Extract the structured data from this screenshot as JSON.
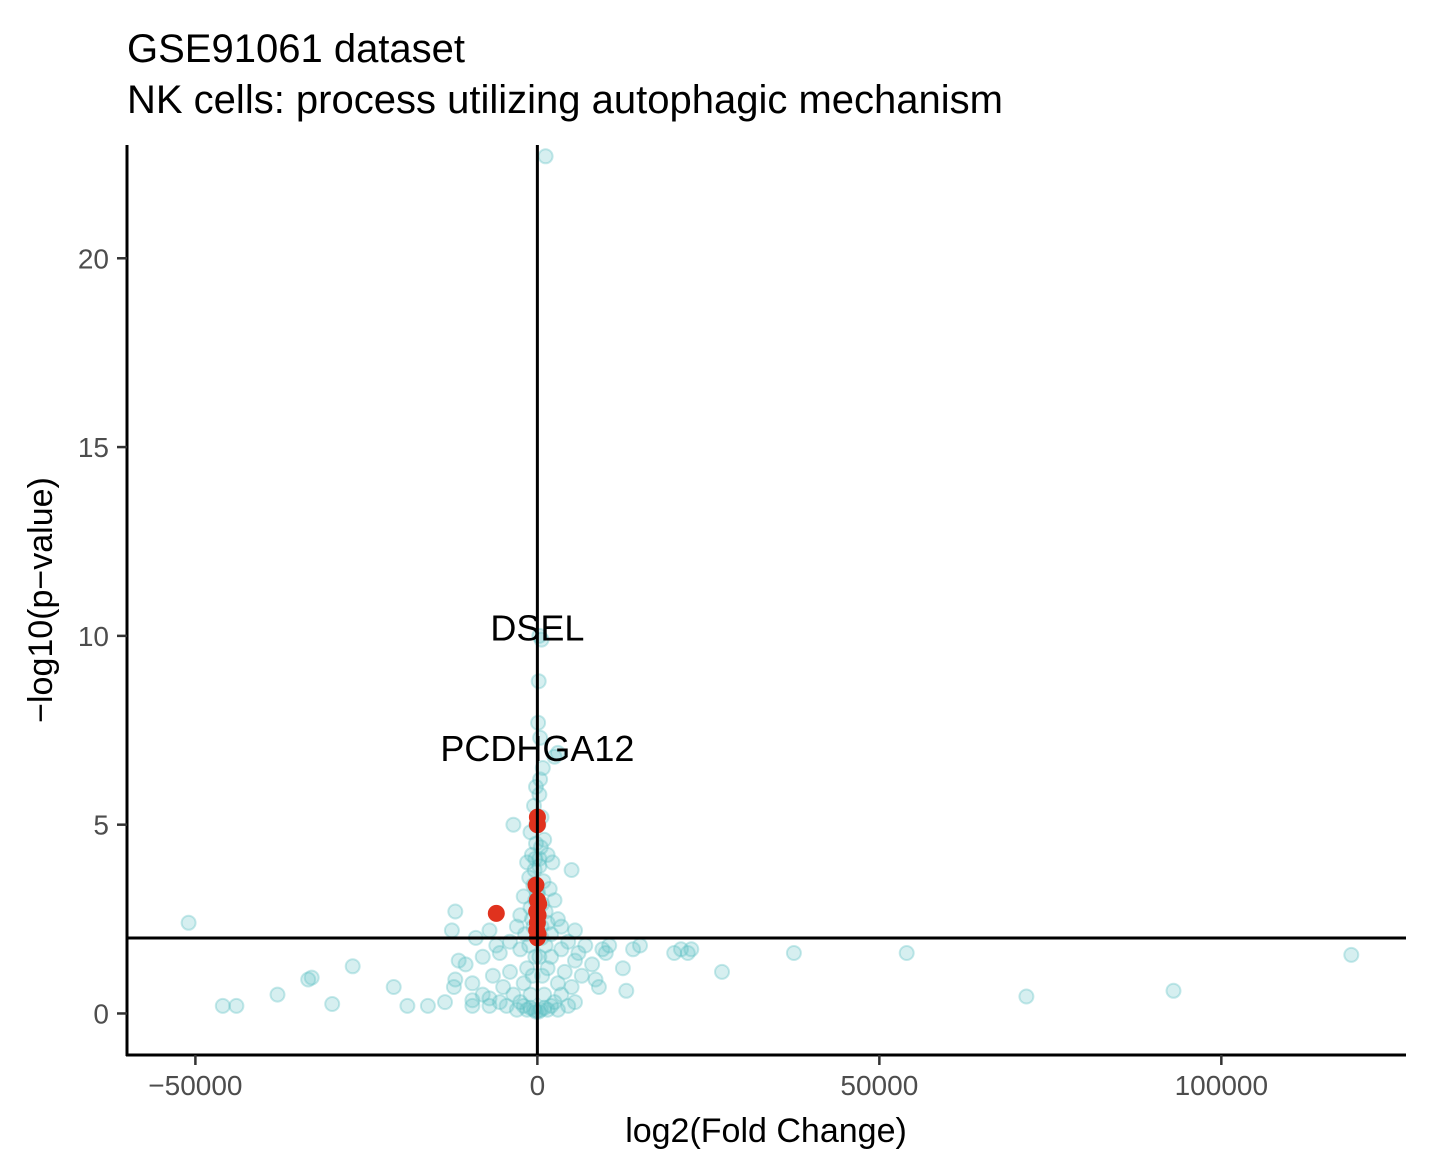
{
  "chart_data": {
    "type": "scatter",
    "title": "GSE91061 dataset",
    "subtitle": "NK cells: process utilizing autophagic mechanism",
    "xlabel": "log2(Fold Change)",
    "ylabel": "−log10(p−value)",
    "xlim": [
      -60000,
      127000
    ],
    "ylim": [
      -1.1,
      23.0
    ],
    "x_ticks": [
      -50000,
      0,
      50000,
      100000
    ],
    "x_tick_labels": [
      "−50000",
      "0",
      "50000",
      "100000"
    ],
    "y_ticks": [
      0,
      5,
      10,
      15,
      20
    ],
    "y_tick_labels": [
      "0",
      "5",
      "10",
      "15",
      "20"
    ],
    "reference_lines": {
      "vertical_x": 0,
      "horizontal_y": 2
    },
    "grid": false,
    "legend": "none",
    "colors": {
      "background_points": "#5bbfc4",
      "highlight_points": "#e0321e",
      "axis": "#000000"
    },
    "annotations": [
      {
        "text": "DSEL",
        "x": 0,
        "y": 10.2
      },
      {
        "text": "PCDHGA12",
        "x": 0,
        "y": 7.0
      }
    ],
    "series": [
      {
        "name": "",
        "role": "background",
        "points": [
          [
            1200,
            22.7
          ],
          [
            300,
            10.0
          ],
          [
            600,
            9.9
          ],
          [
            200,
            8.8
          ],
          [
            100,
            7.7
          ],
          [
            400,
            7.3
          ],
          [
            2500,
            6.8
          ],
          [
            3000,
            6.9
          ],
          [
            800,
            6.5
          ],
          [
            400,
            6.2
          ],
          [
            -200,
            6.0
          ],
          [
            300,
            5.8
          ],
          [
            -500,
            5.5
          ],
          [
            600,
            5.2
          ],
          [
            -3500,
            5.0
          ],
          [
            -1000,
            4.8
          ],
          [
            1000,
            4.6
          ],
          [
            -200,
            4.5
          ],
          [
            500,
            4.4
          ],
          [
            -800,
            4.2
          ],
          [
            1500,
            4.2
          ],
          [
            -1500,
            4.0
          ],
          [
            2200,
            4.0
          ],
          [
            300,
            3.9
          ],
          [
            -400,
            3.8
          ],
          [
            5000,
            3.8
          ],
          [
            -1200,
            3.6
          ],
          [
            900,
            3.5
          ],
          [
            -600,
            3.4
          ],
          [
            1800,
            3.3
          ],
          [
            -2000,
            3.1
          ],
          [
            2500,
            3.0
          ],
          [
            -300,
            3.0
          ],
          [
            700,
            2.9
          ],
          [
            -1000,
            2.8
          ],
          [
            1200,
            2.7
          ],
          [
            -12000,
            2.7
          ],
          [
            -2500,
            2.6
          ],
          [
            3000,
            2.5
          ],
          [
            -800,
            2.5
          ],
          [
            1500,
            2.4
          ],
          [
            -51000,
            2.4
          ],
          [
            3500,
            2.3
          ],
          [
            -3000,
            2.3
          ],
          [
            -7000,
            2.2
          ],
          [
            -12500,
            2.2
          ],
          [
            5500,
            2.2
          ],
          [
            -1800,
            2.1
          ],
          [
            2000,
            2.1
          ],
          [
            -9000,
            2.0
          ],
          [
            600,
            2.0
          ],
          [
            -4000,
            1.9
          ],
          [
            4500,
            1.9
          ],
          [
            -6000,
            1.8
          ],
          [
            7000,
            1.8
          ],
          [
            9500,
            1.7
          ],
          [
            15000,
            1.8
          ],
          [
            -2500,
            1.7
          ],
          [
            3500,
            1.7
          ],
          [
            10500,
            1.8
          ],
          [
            14000,
            1.7
          ],
          [
            21000,
            1.7
          ],
          [
            22500,
            1.7
          ],
          [
            -5500,
            1.6
          ],
          [
            6000,
            1.6
          ],
          [
            10000,
            1.6
          ],
          [
            20000,
            1.6
          ],
          [
            22000,
            1.6
          ],
          [
            37500,
            1.6
          ],
          [
            54000,
            1.6
          ],
          [
            119000,
            1.55
          ],
          [
            -8000,
            1.5
          ],
          [
            2000,
            1.5
          ],
          [
            -11500,
            1.4
          ],
          [
            5500,
            1.4
          ],
          [
            -10500,
            1.3
          ],
          [
            8000,
            1.3
          ],
          [
            12500,
            1.2
          ],
          [
            -27000,
            1.25
          ],
          [
            27000,
            1.1
          ],
          [
            -1500,
            1.2
          ],
          [
            1500,
            1.2
          ],
          [
            -4000,
            1.1
          ],
          [
            4000,
            1.1
          ],
          [
            -6500,
            1.0
          ],
          [
            6500,
            1.0
          ],
          [
            8500,
            0.9
          ],
          [
            -33000,
            0.95
          ],
          [
            -33500,
            0.9
          ],
          [
            -12000,
            0.9
          ],
          [
            -9500,
            0.8
          ],
          [
            -2000,
            0.8
          ],
          [
            3000,
            0.8
          ],
          [
            -21000,
            0.7
          ],
          [
            -12200,
            0.7
          ],
          [
            -5000,
            0.7
          ],
          [
            5000,
            0.7
          ],
          [
            9000,
            0.7
          ],
          [
            13000,
            0.6
          ],
          [
            93000,
            0.6
          ],
          [
            -38000,
            0.5
          ],
          [
            -8000,
            0.5
          ],
          [
            -3500,
            0.5
          ],
          [
            -1000,
            0.5
          ],
          [
            1000,
            0.5
          ],
          [
            3500,
            0.5
          ],
          [
            71500,
            0.45
          ],
          [
            -7000,
            0.4
          ],
          [
            -9500,
            0.35
          ],
          [
            -13500,
            0.3
          ],
          [
            -30000,
            0.25
          ],
          [
            -5500,
            0.3
          ],
          [
            -2500,
            0.3
          ],
          [
            2500,
            0.3
          ],
          [
            5500,
            0.3
          ],
          [
            -46000,
            0.2
          ],
          [
            -44000,
            0.2
          ],
          [
            -19000,
            0.2
          ],
          [
            -16000,
            0.2
          ],
          [
            -9500,
            0.2
          ],
          [
            -7000,
            0.2
          ],
          [
            -4500,
            0.2
          ],
          [
            -2000,
            0.2
          ],
          [
            2000,
            0.2
          ],
          [
            4500,
            0.2
          ],
          [
            -1000,
            0.15
          ],
          [
            1000,
            0.15
          ],
          [
            -500,
            0.1
          ],
          [
            500,
            0.1
          ],
          [
            -200,
            0.05
          ],
          [
            200,
            0.05
          ],
          [
            -1500,
            0.1
          ],
          [
            1500,
            0.1
          ],
          [
            -3000,
            0.1
          ],
          [
            3000,
            0.1
          ],
          [
            -700,
            1.0
          ],
          [
            700,
            1.0
          ],
          [
            -300,
            1.5
          ],
          [
            300,
            1.5
          ],
          [
            -1200,
            1.8
          ],
          [
            1200,
            1.8
          ],
          [
            -600,
            2.3
          ],
          [
            600,
            2.3
          ],
          [
            -100,
            3.2
          ],
          [
            100,
            3.2
          ],
          [
            -300,
            4.1
          ],
          [
            300,
            4.1
          ],
          [
            -150,
            5.0
          ],
          [
            150,
            5.0
          ]
        ]
      },
      {
        "name": "",
        "role": "highlight",
        "points": [
          [
            0,
            5.2
          ],
          [
            0,
            5.0
          ],
          [
            -200,
            3.4
          ],
          [
            0,
            3.0
          ],
          [
            200,
            2.9
          ],
          [
            -100,
            2.7
          ],
          [
            100,
            2.6
          ],
          [
            0,
            2.4
          ],
          [
            -100,
            2.2
          ],
          [
            100,
            2.1
          ],
          [
            0,
            2.0
          ],
          [
            -6000,
            2.65
          ]
        ]
      }
    ]
  }
}
